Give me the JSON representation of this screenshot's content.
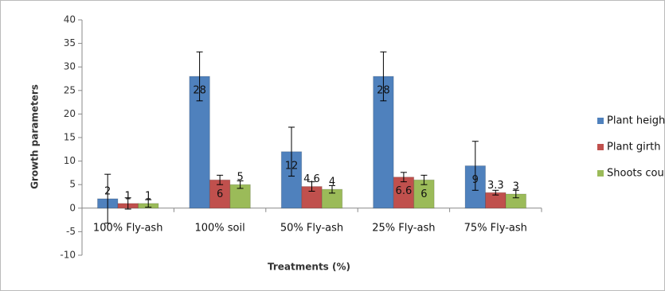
{
  "chart_data": {
    "type": "bar",
    "x_label": "Treatments (%)",
    "y_label": "Growth parameters",
    "categories": [
      "100% Fly-ash",
      "100% soil",
      "50% Fly-ash",
      "25% Fly-ash",
      "75% Fly-ash"
    ],
    "series": [
      {
        "name": "Plant height",
        "color": "#4f81bd",
        "values": [
          2,
          28,
          12,
          28,
          9
        ],
        "errors": [
          5.2,
          5.2,
          5.2,
          5.2,
          5.2
        ]
      },
      {
        "name": "Plant girth",
        "color": "#c0504d",
        "values": [
          1,
          6,
          4.6,
          6.6,
          3.3
        ],
        "errors": [
          1.2,
          1,
          1,
          1,
          0.5
        ]
      },
      {
        "name": "Shoots count",
        "color": "#9bbb59",
        "values": [
          1,
          5,
          4,
          6,
          3
        ],
        "errors": [
          0.8,
          0.8,
          0.8,
          1,
          0.8
        ]
      }
    ],
    "ylim": [
      -10,
      40
    ],
    "yticks": [
      -10,
      -5,
      0,
      5,
      10,
      15,
      20,
      25,
      30,
      35,
      40
    ],
    "legend": "right"
  }
}
